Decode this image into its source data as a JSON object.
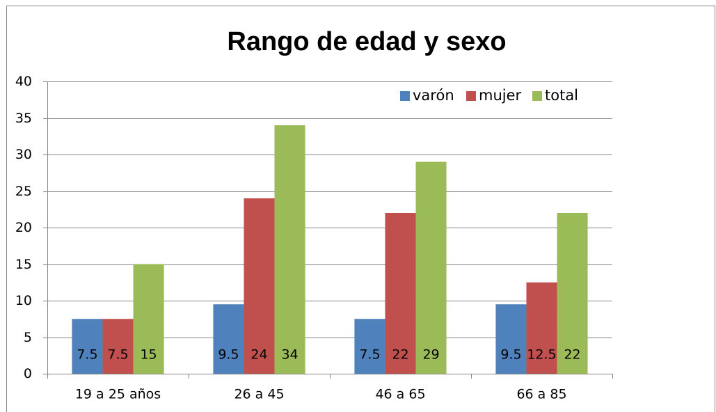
{
  "chart_data": {
    "type": "bar",
    "title": "Rango de edad y sexo",
    "categories": [
      "19 a 25 años",
      "26 a 45",
      "46 a 65",
      "66 a 85"
    ],
    "series": [
      {
        "name": "varón",
        "color": "#4f81bd",
        "values": [
          7.5,
          9.5,
          7.5,
          9.5
        ]
      },
      {
        "name": "mujer",
        "color": "#c0504d",
        "values": [
          7.5,
          24,
          22,
          12.5
        ]
      },
      {
        "name": "total",
        "color": "#9bbb59",
        "values": [
          15,
          34,
          29,
          22
        ]
      }
    ],
    "ylim": [
      0,
      40
    ],
    "yticks": [
      0,
      5,
      10,
      15,
      20,
      25,
      30,
      35,
      40
    ],
    "grid": true,
    "legend": "upper right",
    "data_labels": true
  }
}
